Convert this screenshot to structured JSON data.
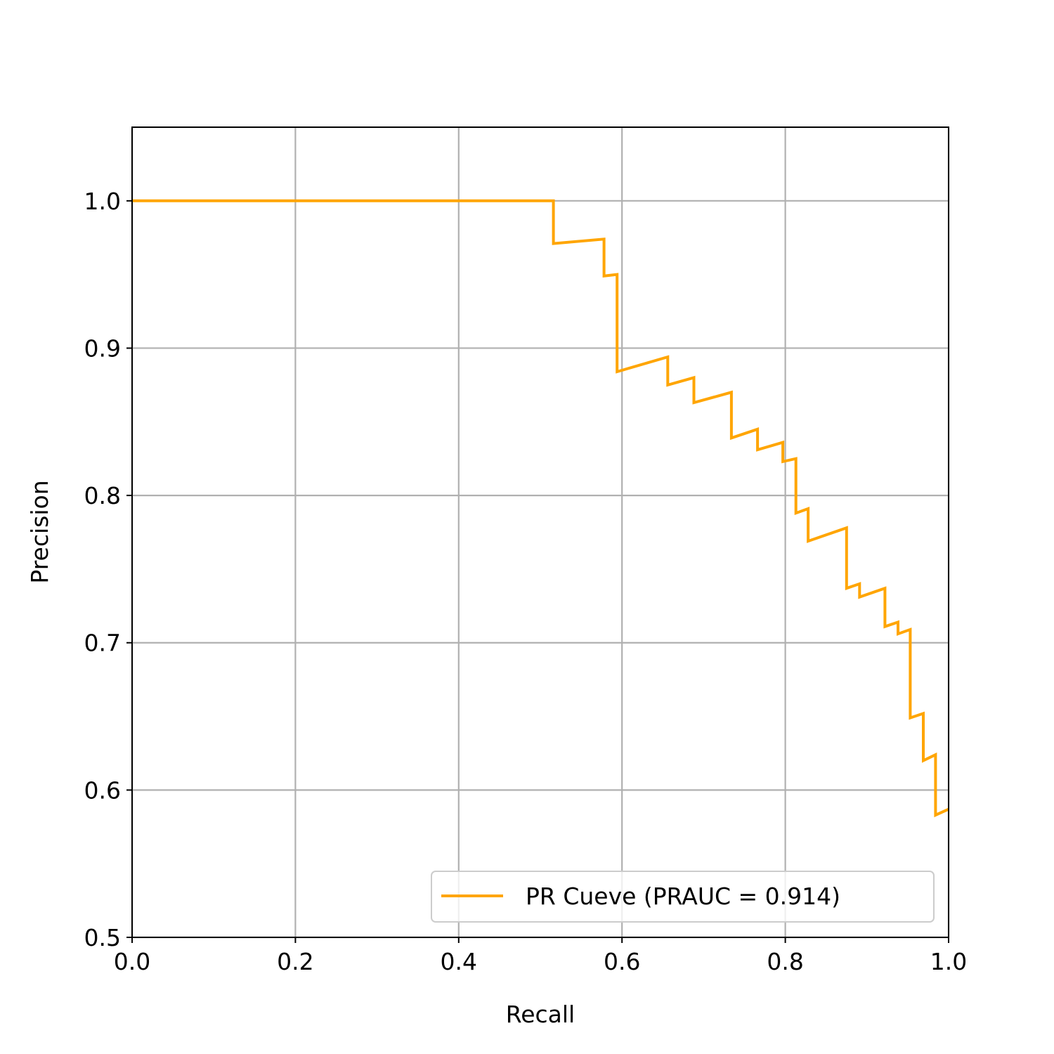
{
  "chart_data": {
    "type": "line",
    "title": "",
    "xlabel": "Recall",
    "ylabel": "Precision",
    "xlim": [
      0.0,
      1.0
    ],
    "ylim": [
      0.5,
      1.05
    ],
    "xticks": [
      "0.0",
      "0.2",
      "0.4",
      "0.6",
      "0.8",
      "1.0"
    ],
    "yticks": [
      "0.5",
      "0.6",
      "0.7",
      "0.8",
      "0.9",
      "1.0"
    ],
    "grid": true,
    "legend_position": "lower-right",
    "series": [
      {
        "name": "PR Cueve (PRAUC = 0.914)",
        "color": "#ffa500",
        "x": [
          0.0,
          0.516,
          0.516,
          0.578,
          0.578,
          0.594,
          0.594,
          0.656,
          0.656,
          0.688,
          0.688,
          0.734,
          0.734,
          0.766,
          0.766,
          0.797,
          0.797,
          0.813,
          0.813,
          0.828,
          0.828,
          0.875,
          0.875,
          0.891,
          0.891,
          0.922,
          0.922,
          0.938,
          0.938,
          0.953,
          0.953,
          0.969,
          0.969,
          0.984,
          0.984,
          1.0
        ],
        "y": [
          1.0,
          1.0,
          0.971,
          0.974,
          0.949,
          0.95,
          0.884,
          0.894,
          0.875,
          0.88,
          0.863,
          0.87,
          0.839,
          0.845,
          0.831,
          0.836,
          0.823,
          0.825,
          0.788,
          0.791,
          0.769,
          0.778,
          0.737,
          0.74,
          0.731,
          0.737,
          0.711,
          0.714,
          0.706,
          0.709,
          0.649,
          0.652,
          0.62,
          0.624,
          0.583,
          0.587
        ]
      }
    ]
  }
}
